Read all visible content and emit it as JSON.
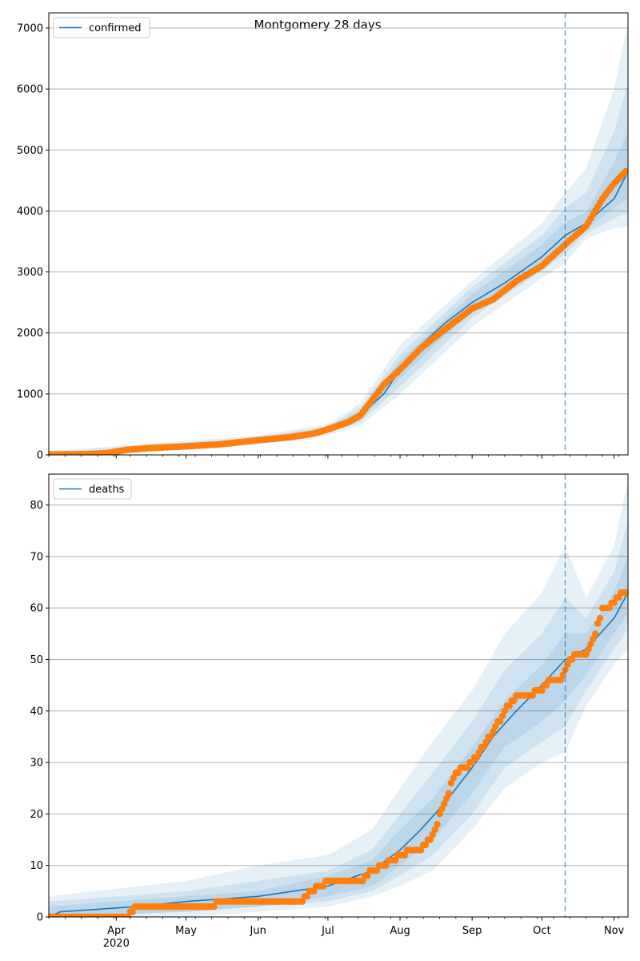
{
  "figure": {
    "title": "Montgomery 28 days",
    "colors": {
      "model": "#1f77b4",
      "observed": "#ff7f0e",
      "band": "#1f77b4",
      "grid": "#b0b0b0",
      "vline": "#1f77b4"
    }
  },
  "chart_data": [
    {
      "type": "line",
      "legend": "confirmed",
      "legend_position": "upper-left",
      "title": "Montgomery 28 days",
      "xlabel": "",
      "ylabel": "",
      "x_domain": [
        "2020-03-03",
        "2020-11-07"
      ],
      "ylim": [
        0,
        7250
      ],
      "y_ticks": [
        0,
        1000,
        2000,
        3000,
        4000,
        5000,
        6000,
        7000
      ],
      "x_tick_labels_shown": false,
      "grid": "horizontal",
      "forecast_start": "2020-10-11",
      "observed": {
        "x": [
          "2020-03-03",
          "2020-03-20",
          "2020-03-28",
          "2020-04-05",
          "2020-04-15",
          "2020-05-01",
          "2020-05-15",
          "2020-06-01",
          "2020-06-15",
          "2020-06-25",
          "2020-07-01",
          "2020-07-10",
          "2020-07-15",
          "2020-07-20",
          "2020-07-25",
          "2020-08-01",
          "2020-08-10",
          "2020-08-20",
          "2020-09-01",
          "2020-09-10",
          "2020-09-20",
          "2020-10-01",
          "2020-10-11",
          "2020-10-20",
          "2020-10-27",
          "2020-11-01",
          "2020-11-06"
        ],
        "y": [
          5,
          10,
          25,
          80,
          110,
          140,
          170,
          240,
          290,
          350,
          420,
          540,
          650,
          900,
          1150,
          1400,
          1750,
          2050,
          2400,
          2550,
          2850,
          3100,
          3450,
          3750,
          4200,
          4450,
          4650
        ]
      },
      "model": {
        "x": [
          "2020-03-03",
          "2020-04-01",
          "2020-05-01",
          "2020-06-01",
          "2020-06-15",
          "2020-07-01",
          "2020-07-15",
          "2020-07-25",
          "2020-08-01",
          "2020-08-10",
          "2020-08-20",
          "2020-09-01",
          "2020-09-15",
          "2020-10-01",
          "2020-10-11",
          "2020-10-20",
          "2020-11-01",
          "2020-11-07"
        ],
        "y": [
          0,
          40,
          140,
          240,
          290,
          400,
          650,
          1000,
          1400,
          1800,
          2150,
          2500,
          2820,
          3250,
          3600,
          3800,
          4200,
          4650
        ]
      },
      "bands": [
        {
          "x": [
            "2020-03-03",
            "2020-06-01",
            "2020-07-01",
            "2020-07-15",
            "2020-08-01",
            "2020-09-01",
            "2020-10-01",
            "2020-10-11",
            "2020-10-20",
            "2020-11-01",
            "2020-11-07"
          ],
          "lower": [
            0,
            180,
            320,
            480,
            1000,
            2100,
            2900,
            3150,
            3550,
            3720,
            3750
          ],
          "upper": [
            60,
            320,
            500,
            850,
            1800,
            2850,
            3800,
            4300,
            4700,
            6000,
            7100
          ]
        },
        {
          "x": [
            "2020-03-03",
            "2020-06-01",
            "2020-07-01",
            "2020-07-15",
            "2020-08-01",
            "2020-09-01",
            "2020-10-01",
            "2020-10-11",
            "2020-10-20",
            "2020-11-01",
            "2020-11-07"
          ],
          "lower": [
            0,
            200,
            350,
            540,
            1120,
            2250,
            3020,
            3300,
            3620,
            3880,
            3980
          ],
          "upper": [
            40,
            290,
            470,
            780,
            1650,
            2750,
            3600,
            4050,
            4300,
            5300,
            6100
          ]
        },
        {
          "x": [
            "2020-03-03",
            "2020-06-01",
            "2020-07-01",
            "2020-07-15",
            "2020-08-01",
            "2020-09-01",
            "2020-10-01",
            "2020-10-11",
            "2020-10-20",
            "2020-11-01",
            "2020-11-07"
          ],
          "lower": [
            0,
            215,
            370,
            580,
            1250,
            2380,
            3120,
            3430,
            3700,
            4050,
            4200
          ],
          "upper": [
            25,
            265,
            440,
            720,
            1550,
            2640,
            3450,
            3820,
            3980,
            4800,
            5300
          ]
        }
      ]
    },
    {
      "type": "line",
      "legend": "deaths",
      "legend_position": "upper-left",
      "xlabel": "",
      "ylabel": "",
      "x_domain": [
        "2020-03-03",
        "2020-11-07"
      ],
      "ylim": [
        0,
        86
      ],
      "y_ticks": [
        0,
        10,
        20,
        30,
        40,
        50,
        60,
        70,
        80
      ],
      "x_ticks": [
        {
          "date": "2020-04-01",
          "label": "Apr",
          "sublabel": "2020"
        },
        {
          "date": "2020-05-01",
          "label": "May",
          "sublabel": ""
        },
        {
          "date": "2020-06-01",
          "label": "Jun",
          "sublabel": ""
        },
        {
          "date": "2020-07-01",
          "label": "Jul",
          "sublabel": ""
        },
        {
          "date": "2020-08-01",
          "label": "Aug",
          "sublabel": ""
        },
        {
          "date": "2020-09-01",
          "label": "Sep",
          "sublabel": ""
        },
        {
          "date": "2020-10-01",
          "label": "Oct",
          "sublabel": ""
        },
        {
          "date": "2020-11-01",
          "label": "Nov",
          "sublabel": ""
        }
      ],
      "grid": "horizontal",
      "forecast_start": "2020-10-11",
      "observed": {
        "x": [
          "2020-03-03",
          "2020-04-06",
          "2020-04-09",
          "2020-05-01",
          "2020-05-26",
          "2020-06-20",
          "2020-06-24",
          "2020-07-01",
          "2020-07-15",
          "2020-07-20",
          "2020-07-29",
          "2020-08-05",
          "2020-08-10",
          "2020-08-15",
          "2020-08-20",
          "2020-08-25",
          "2020-09-01",
          "2020-09-10",
          "2020-09-15",
          "2020-09-20",
          "2020-09-25",
          "2020-09-30",
          "2020-10-05",
          "2020-10-09",
          "2020-10-12",
          "2020-10-15",
          "2020-10-20",
          "2020-10-24",
          "2020-10-27",
          "2020-10-29",
          "2020-11-01",
          "2020-11-04",
          "2020-11-06"
        ],
        "y": [
          0,
          0,
          2,
          2,
          3,
          3,
          5,
          7,
          7,
          9,
          11,
          13,
          13,
          16,
          22,
          28,
          30,
          36,
          40,
          43,
          43,
          44,
          46,
          46,
          49,
          51,
          51,
          55,
          60,
          60,
          61,
          63,
          63
        ]
      },
      "model": {
        "x": [
          "2020-03-03",
          "2020-03-08",
          "2020-04-10",
          "2020-05-01",
          "2020-06-01",
          "2020-07-01",
          "2020-07-20",
          "2020-08-01",
          "2020-08-10",
          "2020-08-20",
          "2020-09-01",
          "2020-09-10",
          "2020-09-20",
          "2020-10-01",
          "2020-10-11",
          "2020-10-20",
          "2020-11-01",
          "2020-11-07"
        ],
        "y": [
          0,
          1,
          2,
          3,
          4,
          6,
          9,
          13,
          17,
          22,
          29,
          35,
          40,
          45,
          50,
          52,
          58,
          63
        ]
      },
      "bands": [
        {
          "x": [
            "2020-03-03",
            "2020-05-01",
            "2020-06-01",
            "2020-07-01",
            "2020-07-20",
            "2020-08-01",
            "2020-08-15",
            "2020-09-01",
            "2020-09-15",
            "2020-10-01",
            "2020-10-11",
            "2020-10-20",
            "2020-11-01",
            "2020-11-07"
          ],
          "lower": [
            0,
            0,
            1,
            2,
            4,
            6,
            9,
            17,
            25,
            30,
            32,
            41,
            49,
            52
          ],
          "upper": [
            4,
            7,
            10,
            12,
            17,
            25,
            34,
            44,
            55,
            63,
            72,
            62,
            72,
            85
          ]
        },
        {
          "x": [
            "2020-03-03",
            "2020-05-01",
            "2020-06-01",
            "2020-07-01",
            "2020-07-20",
            "2020-08-01",
            "2020-08-15",
            "2020-09-01",
            "2020-09-15",
            "2020-10-01",
            "2020-10-11",
            "2020-10-20",
            "2020-11-01",
            "2020-11-07"
          ],
          "lower": [
            0,
            1,
            2,
            3,
            5,
            8,
            12,
            20,
            29,
            34,
            37,
            44,
            52,
            56
          ],
          "upper": [
            3,
            5,
            7,
            9,
            13,
            20,
            28,
            38,
            48,
            55,
            62,
            58,
            67,
            77
          ]
        },
        {
          "x": [
            "2020-03-03",
            "2020-05-01",
            "2020-06-01",
            "2020-07-01",
            "2020-07-20",
            "2020-08-01",
            "2020-08-15",
            "2020-09-01",
            "2020-09-15",
            "2020-10-01",
            "2020-10-11",
            "2020-10-20",
            "2020-11-01",
            "2020-11-07"
          ],
          "lower": [
            0,
            1,
            2,
            4,
            6,
            10,
            15,
            24,
            33,
            38,
            42,
            47,
            55,
            59
          ],
          "upper": [
            2,
            4,
            5,
            8,
            11,
            17,
            23,
            33,
            42,
            49,
            55,
            55,
            63,
            70
          ]
        }
      ]
    }
  ]
}
